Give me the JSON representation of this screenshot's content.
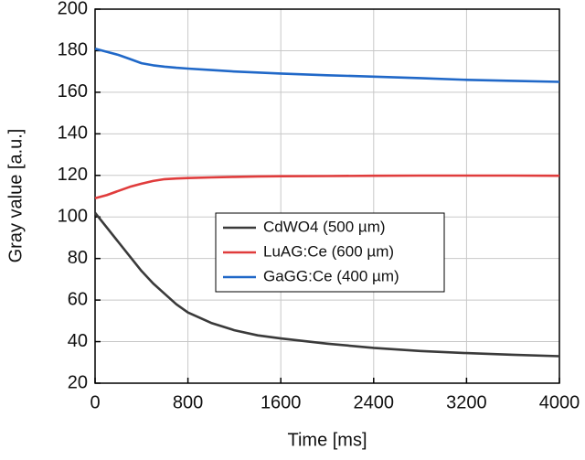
{
  "chart_data": {
    "type": "line",
    "x_label": "Time [ms]",
    "y_label": "Gray value [a.u.]",
    "x": [
      0,
      100,
      200,
      300,
      400,
      500,
      600,
      700,
      800,
      1000,
      1200,
      1400,
      1600,
      2000,
      2400,
      2800,
      3200,
      3600,
      4000
    ],
    "series": [
      {
        "name": "CdWO4 (500 µm)",
        "color": "#3a3a3a",
        "values": [
          102,
          95,
          88,
          81,
          74,
          68,
          63,
          58,
          54,
          49,
          45.5,
          43,
          41.5,
          39,
          37,
          35.5,
          34.5,
          33.7,
          33
        ]
      },
      {
        "name": "LuAG:Ce (600 µm)",
        "color": "#e03c3c",
        "values": [
          109,
          110.5,
          112.5,
          114.5,
          116,
          117.3,
          118.2,
          118.5,
          118.7,
          119,
          119.3,
          119.5,
          119.6,
          119.7,
          119.8,
          119.9,
          119.9,
          119.9,
          119.8
        ]
      },
      {
        "name": "GaGG:Ce (400 µm)",
        "color": "#2068c8",
        "values": [
          181,
          179.5,
          178,
          176,
          174,
          173,
          172.3,
          171.8,
          171.4,
          170.7,
          170,
          169.5,
          169,
          168.2,
          167.5,
          166.8,
          166,
          165.5,
          165
        ]
      }
    ],
    "xlim": [
      0,
      4000
    ],
    "xticks": [
      0,
      800,
      1600,
      2400,
      3200,
      4000
    ],
    "ylim": [
      20,
      200
    ],
    "yticks": [
      20,
      40,
      60,
      80,
      100,
      120,
      140,
      160,
      180,
      200
    ],
    "grid": true,
    "legend": "center"
  }
}
